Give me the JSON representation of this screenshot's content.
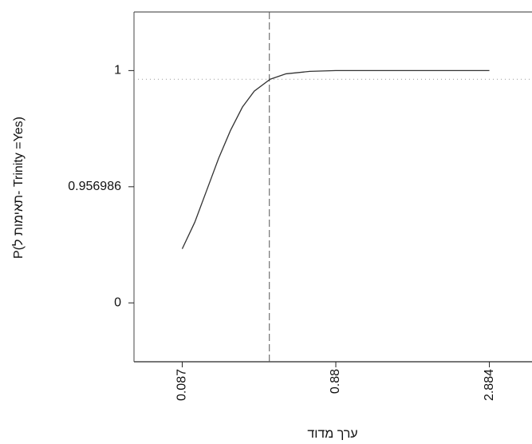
{
  "chart_data": {
    "type": "line",
    "scale": "profiler",
    "ylabel": "P(תאימות ל- Trinity =Yes)",
    "xlabel": "ערך מדוד",
    "x": [
      0.087,
      0.152,
      0.214,
      0.275,
      0.336,
      0.398,
      0.459,
      0.541,
      0.623,
      0.746,
      0.88,
      1.688,
      2.884
    ],
    "series": [
      {
        "color": "#333333",
        "values": [
          0.445,
          0.665,
          0.93,
          0.9675,
          0.9778,
          0.9865,
          0.9924,
          0.9968,
          0.9988,
          0.9997,
          1,
          1,
          1
        ]
      }
    ],
    "xlim": [
      -0.162,
      3.44
    ],
    "xticks": [
      0.087,
      0.88,
      2.884
    ],
    "ylim": [
      -0.485,
      1.0217
    ],
    "yticks": [
      0,
      0.956986,
      1
    ],
    "reference_x": 0.537,
    "reference_y": 0.9968
  }
}
